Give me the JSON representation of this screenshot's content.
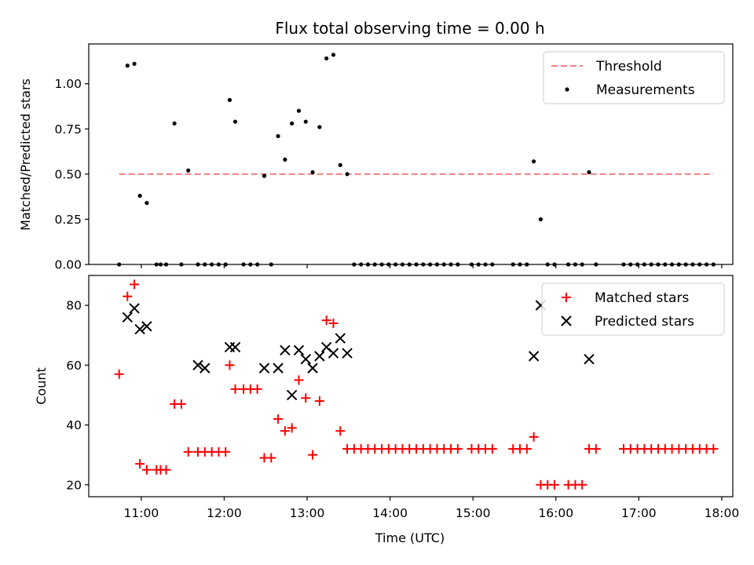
{
  "chart_data": [
    {
      "type": "scatter",
      "title": "Flux total observing time = 0.00 h",
      "xlabel": "",
      "ylabel": "Matched/Predicted stars",
      "ylim": [
        0,
        1.22
      ],
      "yticks": [
        "0.00",
        "0.25",
        "0.50",
        "0.75",
        "1.00"
      ],
      "ytick_values": [
        0,
        0.25,
        0.5,
        0.75,
        1.0
      ],
      "xlim": [
        "10:22",
        "18:08"
      ],
      "legend_position": "top-right",
      "legend": [
        "Threshold",
        "Measurements"
      ],
      "threshold": {
        "name": "Threshold",
        "value": 0.5,
        "x_start": "10:44",
        "x_end": "17:54",
        "color": "#f08080"
      },
      "series": [
        {
          "name": "Measurements",
          "color": "#000000",
          "x": [
            "10:44",
            "10:50",
            "10:55",
            "10:59",
            "11:04",
            "11:11",
            "11:14",
            "11:18",
            "11:24",
            "11:29",
            "11:34",
            "11:41",
            "11:46",
            "11:51",
            "11:56",
            "12:01",
            "12:04",
            "12:08",
            "12:14",
            "12:19",
            "12:24",
            "12:29",
            "12:34",
            "12:39",
            "12:44",
            "12:49",
            "12:54",
            "12:59",
            "13:04",
            "13:09",
            "13:14",
            "13:19",
            "13:24",
            "13:29",
            "13:34",
            "13:39",
            "13:44",
            "13:49",
            "13:54",
            "13:59",
            "14:04",
            "14:09",
            "14:14",
            "14:19",
            "14:24",
            "14:29",
            "14:34",
            "14:39",
            "14:44",
            "14:49",
            "14:59",
            "15:04",
            "15:09",
            "15:14",
            "15:29",
            "15:34",
            "15:39",
            "15:44",
            "15:49",
            "15:54",
            "15:59",
            "16:09",
            "16:14",
            "16:19",
            "16:24",
            "16:29",
            "16:49",
            "16:54",
            "16:59",
            "17:04",
            "17:09",
            "17:14",
            "17:19",
            "17:24",
            "17:29",
            "17:34",
            "17:39",
            "17:44",
            "17:49",
            "17:54"
          ],
          "y": [
            0.0,
            1.1,
            1.11,
            0.38,
            0.34,
            0.0,
            0.0,
            0.0,
            0.78,
            0.0,
            0.52,
            0.0,
            0.0,
            0.0,
            0.0,
            0.0,
            0.91,
            0.79,
            0.0,
            0.0,
            0.0,
            0.49,
            0.0,
            0.71,
            0.58,
            0.78,
            0.85,
            0.79,
            0.51,
            0.76,
            1.14,
            1.16,
            0.55,
            0.5,
            0.0,
            0.0,
            0.0,
            0.0,
            0.0,
            0.0,
            0.0,
            0.0,
            0.0,
            0.0,
            0.0,
            0.0,
            0.0,
            0.0,
            0.0,
            0.0,
            0.0,
            0.0,
            0.0,
            0.0,
            0.0,
            0.0,
            0.0,
            0.57,
            0.25,
            0.0,
            0.0,
            0.0,
            0.0,
            0.0,
            0.51,
            0.0,
            0.0,
            0.0,
            0.0,
            0.0,
            0.0,
            0.0,
            0.0,
            0.0,
            0.0,
            0.0,
            0.0,
            0.0,
            0.0,
            0.0
          ]
        }
      ]
    },
    {
      "type": "scatter",
      "title": "",
      "xlabel": "Time (UTC)",
      "ylabel": "Count",
      "ylim": [
        16,
        90
      ],
      "yticks": [
        "20",
        "40",
        "60",
        "80"
      ],
      "ytick_values": [
        20,
        40,
        60,
        80
      ],
      "xlim": [
        "10:22",
        "18:08"
      ],
      "xticks": [
        "11:00",
        "12:00",
        "13:00",
        "14:00",
        "15:00",
        "16:00",
        "17:00",
        "18:00"
      ],
      "legend_position": "top-right",
      "legend": [
        "Matched stars",
        "Predicted stars"
      ],
      "series": [
        {
          "name": "Matched stars",
          "color": "#ff0000",
          "marker": "plus",
          "x": [
            "10:44",
            "10:50",
            "10:55",
            "10:59",
            "11:04",
            "11:11",
            "11:14",
            "11:18",
            "11:24",
            "11:29",
            "11:34",
            "11:41",
            "11:46",
            "11:51",
            "11:56",
            "12:01",
            "12:04",
            "12:08",
            "12:14",
            "12:19",
            "12:24",
            "12:29",
            "12:34",
            "12:39",
            "12:44",
            "12:49",
            "12:54",
            "12:59",
            "13:04",
            "13:09",
            "13:14",
            "13:19",
            "13:24",
            "13:29",
            "13:34",
            "13:39",
            "13:44",
            "13:49",
            "13:54",
            "13:59",
            "14:04",
            "14:09",
            "14:14",
            "14:19",
            "14:24",
            "14:29",
            "14:34",
            "14:39",
            "14:44",
            "14:49",
            "14:59",
            "15:04",
            "15:09",
            "15:14",
            "15:29",
            "15:34",
            "15:39",
            "15:44",
            "15:49",
            "15:54",
            "15:59",
            "16:09",
            "16:14",
            "16:19",
            "16:24",
            "16:29",
            "16:49",
            "16:54",
            "16:59",
            "17:04",
            "17:09",
            "17:14",
            "17:19",
            "17:24",
            "17:29",
            "17:34",
            "17:39",
            "17:44",
            "17:49",
            "17:54"
          ],
          "y": [
            57,
            83,
            87,
            27,
            25,
            25,
            25,
            25,
            47,
            47,
            31,
            31,
            31,
            31,
            31,
            31,
            60,
            52,
            52,
            52,
            52,
            29,
            29,
            42,
            38,
            39,
            55,
            49,
            30,
            48,
            75,
            74,
            38,
            32,
            32,
            32,
            32,
            32,
            32,
            32,
            32,
            32,
            32,
            32,
            32,
            32,
            32,
            32,
            32,
            32,
            32,
            32,
            32,
            32,
            32,
            32,
            32,
            36,
            20,
            20,
            20,
            20,
            20,
            20,
            32,
            32,
            32,
            32,
            32,
            32,
            32,
            32,
            32,
            32,
            32,
            32,
            32,
            32,
            32,
            32
          ]
        },
        {
          "name": "Predicted stars",
          "color": "#000000",
          "marker": "x",
          "x": [
            "10:50",
            "10:55",
            "10:59",
            "11:04",
            "11:41",
            "11:46",
            "12:04",
            "12:08",
            "12:29",
            "12:39",
            "12:44",
            "12:49",
            "12:54",
            "12:59",
            "13:04",
            "13:09",
            "13:14",
            "13:19",
            "13:24",
            "13:29",
            "15:44",
            "15:49",
            "16:24"
          ],
          "y": [
            76,
            79,
            72,
            73,
            60,
            59,
            66,
            66,
            59,
            59,
            65,
            50,
            65,
            62,
            59,
            63,
            66,
            64,
            69,
            64,
            63,
            80,
            62
          ]
        }
      ]
    }
  ]
}
